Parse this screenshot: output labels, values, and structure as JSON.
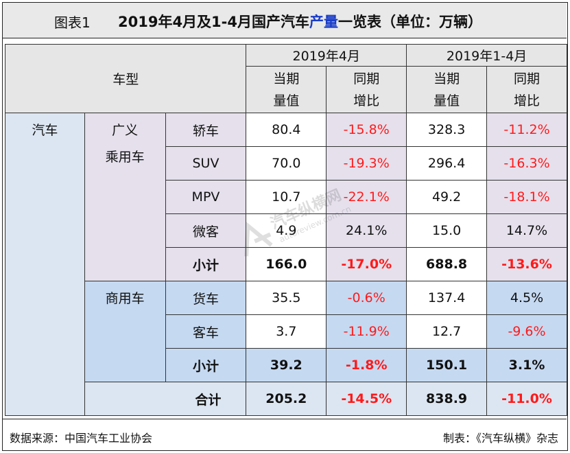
{
  "title": {
    "label": "图表1",
    "main_pre": "2019年4月及1-4月国产汽车",
    "main_hl": "产量",
    "main_post": "一览表（单位：万辆）"
  },
  "header": {
    "vehicle_type": "车型",
    "period_apr": "2019年4月",
    "period_ytd": "2019年1-4月",
    "current_l1": "当期",
    "current_l2": "量值",
    "yoy_l1": "同期",
    "yoy_l2": "增比"
  },
  "labels": {
    "auto": "汽车",
    "passenger_l1": "广义",
    "passenger_l2": "乘用车",
    "commercial": "商用车",
    "subtotal": "小计",
    "total": "合计"
  },
  "passenger_rows": [
    {
      "name": "轿车",
      "apr": "80.4",
      "apr_yoy": "-15.8%",
      "ytd": "328.3",
      "ytd_yoy": "-11.2%"
    },
    {
      "name": "SUV",
      "apr": "70.0",
      "apr_yoy": "-19.3%",
      "ytd": "296.4",
      "ytd_yoy": "-16.3%"
    },
    {
      "name": "MPV",
      "apr": "10.7",
      "apr_yoy": "-22.1%",
      "ytd": "49.2",
      "ytd_yoy": "-18.1%"
    },
    {
      "name": "微客",
      "apr": "4.9",
      "apr_yoy": "24.1%",
      "ytd": "15.0",
      "ytd_yoy": "14.7%"
    }
  ],
  "passenger_subtotal": {
    "apr": "166.0",
    "apr_yoy": "-17.0%",
    "ytd": "688.8",
    "ytd_yoy": "-13.6%"
  },
  "commercial_rows": [
    {
      "name": "货车",
      "apr": "35.5",
      "apr_yoy": "-0.6%",
      "ytd": "137.4",
      "ytd_yoy": "4.5%"
    },
    {
      "name": "客车",
      "apr": "3.7",
      "apr_yoy": "-11.9%",
      "ytd": "12.7",
      "ytd_yoy": "-9.6%"
    }
  ],
  "commercial_subtotal": {
    "apr": "39.2",
    "apr_yoy": "-1.8%",
    "ytd": "150.1",
    "ytd_yoy": "3.1%"
  },
  "grand_total": {
    "apr": "205.2",
    "apr_yoy": "-14.5%",
    "ytd": "838.9",
    "ytd_yoy": "-11.0%"
  },
  "footer": {
    "source": "数据来源：中国汽车工业协会",
    "credit": "制表：《汽车纵横》杂志"
  },
  "watermark": {
    "brand": "汽车纵横网",
    "url": "autoreview.com.cn"
  },
  "colors": {
    "negative": "#ff1a1a",
    "title_highlight": "#1a3cc8",
    "blue_bg": "#dce6f2",
    "purple_bg": "#e5e0ec",
    "header_bg": "#e6e6e6"
  }
}
